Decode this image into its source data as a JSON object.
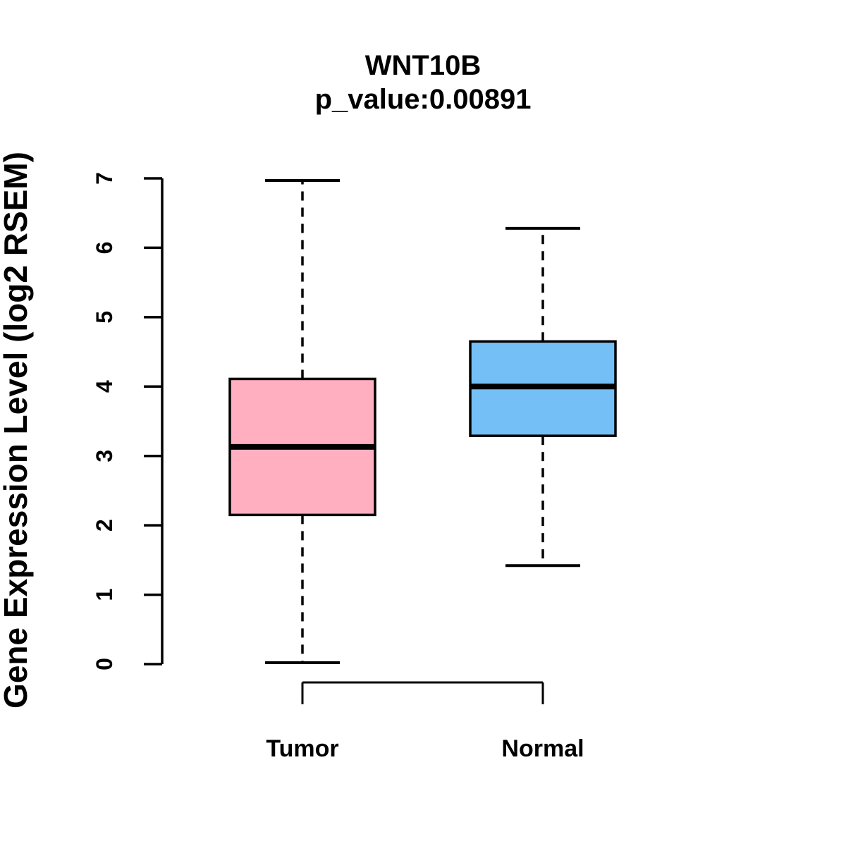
{
  "chart_data": {
    "type": "boxplot",
    "title": "WNT10B",
    "subtitle": "p_value:0.00891",
    "ylabel": "Gene Expression Level (log2 RSEM)",
    "xlabel": "",
    "categories": [
      "Tumor",
      "Normal"
    ],
    "ylim": [
      0,
      7
    ],
    "yticks": [
      0,
      1,
      2,
      3,
      4,
      5,
      6,
      7
    ],
    "grid": "off",
    "legend": "none",
    "series": [
      {
        "name": "Tumor",
        "whisker_low": 0.02,
        "q1": 2.15,
        "median": 3.13,
        "q3": 4.11,
        "whisker_high": 6.97,
        "fill_color": "#FFAFC0"
      },
      {
        "name": "Normal",
        "whisker_low": 1.42,
        "q1": 3.29,
        "median": 4.0,
        "q3": 4.65,
        "whisker_high": 6.28,
        "fill_color": "#74BFF5"
      }
    ],
    "stroke_color": "#000000",
    "whisker_style": "dashed"
  }
}
